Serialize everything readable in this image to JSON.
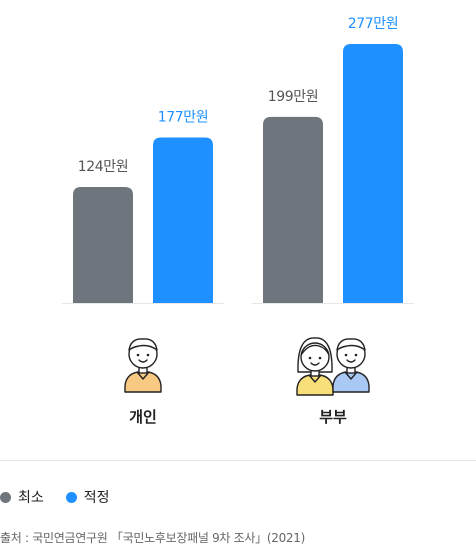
{
  "chart_data": {
    "type": "bar",
    "categories": [
      "개인",
      "부부"
    ],
    "series": [
      {
        "name": "최소",
        "color": "#6f757d",
        "values": [
          124,
          199
        ],
        "labels": [
          "124만원",
          "199만원"
        ]
      },
      {
        "name": "적정",
        "color": "#1e90ff",
        "values": [
          177,
          277
        ],
        "labels": [
          "177만원",
          "277만원"
        ]
      }
    ],
    "label_colors": [
      "#555555",
      "#1e90ff"
    ],
    "ylim": [
      0,
      277
    ],
    "grid": false,
    "legend_position": "bottom-left",
    "category_icons": [
      "person-icon",
      "couple-icon"
    ]
  },
  "legend": {
    "items": [
      {
        "label": "최소",
        "color": "#6f757d"
      },
      {
        "label": "적정",
        "color": "#1e90ff"
      }
    ]
  },
  "source": "출처 : 국민연금연구원 「국민노후보장패널 9차 조사」(2021)"
}
